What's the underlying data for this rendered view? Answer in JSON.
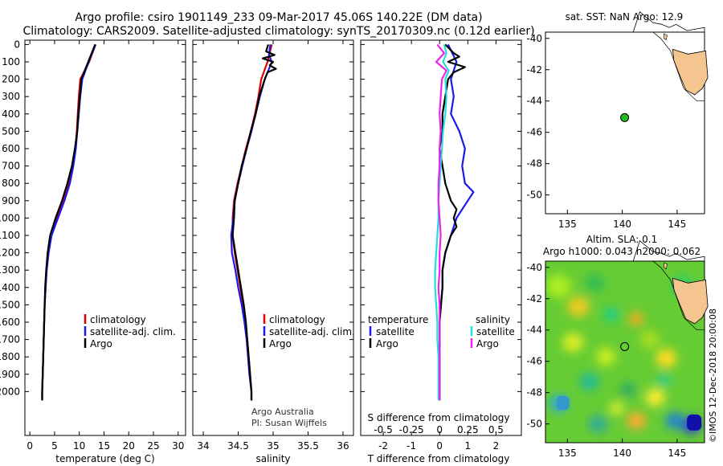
{
  "title_line1": "Argo profile: csiro 1901149_233 09-Mar-2017 45.06S 140.22E (DM data)",
  "title_line2": "Climatology: CARS2009. Satellite-adjusted climatology: synTS_20170309.nc (0.12d earlier)",
  "colors": {
    "climatology": "#dd0000",
    "satellite": "#1a1aee",
    "argo": "#000000",
    "sal_satellite": "#22dddd",
    "sal_argo": "#ee22ee"
  },
  "depth_ticks": [
    "0",
    "100",
    "200",
    "300",
    "400",
    "500",
    "600",
    "700",
    "800",
    "900",
    "1000",
    "1100",
    "1200",
    "1300",
    "1400",
    "1500",
    "1600",
    "1700",
    "1800",
    "1900",
    "2000"
  ],
  "chart_data": [
    {
      "type": "line",
      "xlabel": "temperature (deg C)",
      "xticks": [
        "0",
        "5",
        "10",
        "15",
        "20",
        "25",
        "30"
      ],
      "xlim": [
        -1,
        31.5
      ],
      "ylim": [
        0,
        2060
      ],
      "legend": [
        "climatology",
        "satellite-adj. clim.",
        "Argo"
      ],
      "series": [
        {
          "name": "climatology",
          "color": "#dd0000",
          "depth": [
            0,
            100,
            200,
            300,
            400,
            500,
            600,
            700,
            800,
            900,
            1000,
            1100,
            1200,
            1300,
            1400,
            1500,
            1600,
            1700,
            1800,
            1900,
            2000,
            2050
          ],
          "values": [
            13.3,
            12.0,
            10.2,
            9.9,
            9.7,
            9.5,
            9.2,
            8.6,
            7.8,
            6.8,
            5.5,
            4.3,
            3.8,
            3.4,
            3.2,
            3.0,
            2.9,
            2.8,
            2.7,
            2.6,
            2.5,
            2.5
          ]
        },
        {
          "name": "satellite-adj. clim.",
          "color": "#1a1aee",
          "depth": [
            0,
            100,
            200,
            300,
            400,
            500,
            600,
            700,
            800,
            900,
            1000,
            1100,
            1200,
            1300,
            1400,
            1500,
            1600,
            1700,
            1800,
            1900,
            2000,
            2050
          ],
          "values": [
            13.3,
            11.9,
            10.6,
            10.2,
            9.9,
            9.6,
            9.3,
            8.8,
            8.1,
            7.0,
            5.7,
            4.4,
            3.8,
            3.4,
            3.2,
            3.0,
            2.9,
            2.8,
            2.7,
            2.6,
            2.5,
            2.5
          ]
        },
        {
          "name": "Argo",
          "color": "#000000",
          "depth": [
            0,
            100,
            200,
            300,
            400,
            500,
            600,
            700,
            800,
            900,
            1000,
            1100,
            1200,
            1300,
            1400,
            1500,
            1600,
            1700,
            1800,
            1900,
            2000,
            2050
          ],
          "values": [
            13.2,
            11.8,
            10.4,
            10.1,
            9.8,
            9.6,
            9.1,
            8.5,
            7.6,
            6.5,
            5.2,
            4.1,
            3.6,
            3.3,
            3.1,
            3.0,
            2.9,
            2.8,
            2.7,
            2.6,
            2.5,
            2.5
          ]
        }
      ]
    },
    {
      "type": "line",
      "xlabel": "salinity",
      "xticks": [
        "34",
        "34.5",
        "35",
        "35.5",
        "36"
      ],
      "xlim": [
        33.85,
        36.15
      ],
      "ylim": [
        0,
        2060
      ],
      "legend": [
        "climatology",
        "satellite-adj. clim.",
        "Argo"
      ],
      "series": [
        {
          "name": "climatology",
          "color": "#dd0000",
          "depth": [
            0,
            100,
            200,
            300,
            400,
            500,
            600,
            700,
            800,
            900,
            1000,
            1100,
            1200,
            1300,
            1400,
            1500,
            1600,
            1700,
            1800,
            1900,
            2000,
            2050
          ],
          "values": [
            34.98,
            34.92,
            34.83,
            34.79,
            34.74,
            34.68,
            34.61,
            34.55,
            34.49,
            34.44,
            34.42,
            34.42,
            34.45,
            34.49,
            34.53,
            34.57,
            34.6,
            34.63,
            34.65,
            34.67,
            34.69,
            34.69
          ]
        },
        {
          "name": "satellite-adj. clim.",
          "color": "#1a1aee",
          "depth": [
            0,
            60,
            100,
            200,
            300,
            400,
            500,
            600,
            700,
            800,
            900,
            1000,
            1100,
            1200,
            1300,
            1400,
            1500,
            1600,
            1700,
            1800,
            1900,
            2000,
            2050
          ],
          "values": [
            34.96,
            34.94,
            34.98,
            34.88,
            34.81,
            34.75,
            34.69,
            34.62,
            34.56,
            34.5,
            34.45,
            34.43,
            34.4,
            34.41,
            34.46,
            34.5,
            34.55,
            34.59,
            34.62,
            34.64,
            34.66,
            34.69,
            34.69
          ]
        },
        {
          "name": "Argo",
          "color": "#000000",
          "depth": [
            0,
            40,
            60,
            80,
            100,
            120,
            140,
            160,
            200,
            250,
            300,
            400,
            500,
            600,
            700,
            800,
            900,
            1000,
            1100,
            1200,
            1250,
            1300,
            1400,
            1500,
            1600,
            1700,
            1800,
            1900,
            2000,
            2050
          ],
          "values": [
            34.93,
            34.9,
            35.02,
            34.85,
            35.0,
            34.95,
            35.04,
            34.92,
            34.88,
            34.84,
            34.8,
            34.75,
            34.68,
            34.62,
            34.55,
            34.5,
            34.45,
            34.44,
            34.42,
            34.46,
            34.48,
            34.5,
            34.54,
            34.58,
            34.61,
            34.63,
            34.65,
            34.67,
            34.69,
            34.69
          ]
        }
      ]
    },
    {
      "type": "line",
      "xlabel": "T difference from climatology",
      "xticks": [
        "-2",
        "-1",
        "0",
        "1",
        "2"
      ],
      "xlim": [
        -2.8,
        2.9
      ],
      "s_axis_label": "S difference from climatology",
      "s_ticks": [
        "-0.5",
        "-0.25",
        "0",
        "0.25",
        "0.5"
      ],
      "ylim": [
        0,
        2060
      ],
      "legend_temperature_title": "temperature",
      "legend_salinity_title": "salinity",
      "legend": [
        "satellite",
        "Argo",
        "satellite",
        "Argo"
      ],
      "series": [
        {
          "name": "temperature satellite",
          "color": "#1a1aee",
          "depth": [
            0,
            100,
            200,
            300,
            400,
            500,
            600,
            700,
            800,
            850,
            900,
            1000,
            1100,
            1200,
            1300,
            1400,
            1500,
            1600,
            1700,
            1800,
            1900,
            2000,
            2050
          ],
          "values": [
            0.3,
            0.6,
            0.4,
            0.5,
            0.4,
            0.7,
            0.9,
            0.8,
            0.9,
            1.2,
            1.0,
            0.6,
            0.4,
            0.2,
            0.1,
            0.1,
            0.05,
            0.0,
            0.0,
            0.0,
            0.0,
            0.0,
            0.0
          ]
        },
        {
          "name": "temperature Argo",
          "color": "#000000",
          "depth": [
            0,
            50,
            70,
            100,
            130,
            160,
            200,
            300,
            400,
            500,
            600,
            700,
            800,
            900,
            950,
            1000,
            1050,
            1100,
            1200,
            1300,
            1400,
            1500,
            1600,
            1700,
            1800,
            1900,
            2000,
            2050
          ],
          "values": [
            0.2,
            0.5,
            0.7,
            0.3,
            0.9,
            0.5,
            0.3,
            0.2,
            0.1,
            0.1,
            0.0,
            0.1,
            0.2,
            0.4,
            0.6,
            0.5,
            0.6,
            0.4,
            0.2,
            0.1,
            0.1,
            0.05,
            0.0,
            0.0,
            0.0,
            0.0,
            0.0,
            0.0
          ]
        },
        {
          "name": "salinity satellite",
          "color": "#22dddd",
          "depth": [
            0,
            50,
            100,
            150,
            200,
            300,
            400,
            500,
            600,
            700,
            800,
            900,
            1000,
            1100,
            1200,
            1300,
            1400,
            1500,
            1600,
            1700,
            1800,
            1900,
            2000,
            2050
          ],
          "values": [
            0.04,
            0.06,
            0.03,
            0.08,
            0.05,
            0.06,
            0.05,
            0.03,
            0.02,
            0.01,
            0.0,
            -0.01,
            -0.01,
            -0.02,
            -0.03,
            -0.04,
            -0.04,
            -0.03,
            -0.02,
            -0.02,
            -0.01,
            -0.01,
            -0.01,
            -0.01
          ]
        },
        {
          "name": "salinity Argo",
          "color": "#ee22ee",
          "depth": [
            0,
            50,
            100,
            150,
            200,
            300,
            400,
            500,
            600,
            700,
            800,
            900,
            1000,
            1100,
            1200,
            1300,
            1400,
            1500,
            1600,
            1700,
            1800,
            1900,
            2000,
            2050
          ],
          "values": [
            -0.02,
            0.04,
            -0.03,
            0.06,
            0.02,
            0.01,
            0.0,
            0.01,
            0.0,
            0.0,
            -0.01,
            -0.01,
            0.0,
            0.01,
            0.0,
            0.0,
            -0.01,
            0.0,
            0.0,
            0.0,
            0.0,
            0.0,
            0.0,
            0.0
          ]
        }
      ]
    },
    {
      "type": "scatter",
      "title": "sat. SST: NaN Argo: 12.9",
      "xticks": [
        "135",
        "140",
        "145"
      ],
      "yticks": [
        "-40",
        "-42",
        "-44",
        "-46",
        "-48",
        "-50"
      ],
      "xlim": [
        133,
        147.5
      ],
      "ylim": [
        -51.2,
        -39.6
      ],
      "point": {
        "lon": 140.22,
        "lat": -45.06
      }
    },
    {
      "type": "heatmap",
      "title_line1": "Altim. SLA: 0.1",
      "title_line2": "Argo h1000: 0.043 h2000: 0.062",
      "xticks": [
        "135",
        "140",
        "145"
      ],
      "yticks": [
        "-40",
        "-42",
        "-44",
        "-46",
        "-48",
        "-50"
      ],
      "xlim": [
        133,
        147.5
      ],
      "ylim": [
        -51.2,
        -39.6
      ],
      "point": {
        "lon": 140.22,
        "lat": -45.06
      }
    }
  ],
  "credit_line1": "Argo Australia",
  "credit_line2": "PI: Susan Wijffels",
  "imos_stamp": "©IMOS 12-Dec-2018 20:00:08"
}
